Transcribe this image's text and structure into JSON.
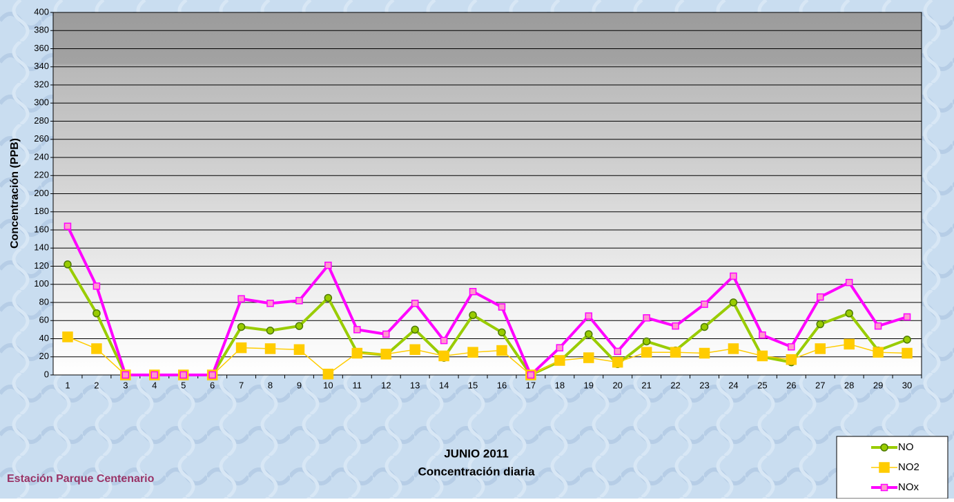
{
  "chart_data": {
    "type": "line",
    "title": "JUNIO 2011",
    "subtitle": "Concentración diaria",
    "y_label": "Concentración  (PPB)",
    "annotation": "Estación Parque Centenario",
    "categories": [
      1,
      2,
      3,
      4,
      5,
      6,
      7,
      8,
      9,
      10,
      11,
      12,
      13,
      14,
      15,
      16,
      17,
      18,
      19,
      20,
      21,
      22,
      23,
      24,
      25,
      26,
      27,
      28,
      29,
      30
    ],
    "series": [
      {
        "name": "NO",
        "color": "#99cc00",
        "values": [
          122,
          68,
          0,
          0,
          0,
          0,
          53,
          49,
          54,
          85,
          25,
          22,
          50,
          19,
          66,
          47,
          0,
          15,
          45,
          12,
          37,
          27,
          53,
          80,
          20,
          14,
          56,
          68,
          27,
          39
        ]
      },
      {
        "name": "NO2",
        "color": "#ffcc00",
        "values": [
          42,
          29,
          0,
          0,
          0,
          0,
          30,
          29,
          28,
          1,
          24,
          23,
          28,
          21,
          25,
          27,
          0,
          16,
          19,
          14,
          25,
          25,
          24,
          29,
          21,
          17,
          29,
          34,
          25,
          24
        ]
      },
      {
        "name": "NOx",
        "color": "#ff00ff",
        "values": [
          164,
          98,
          0,
          0,
          0,
          0,
          84,
          79,
          82,
          121,
          50,
          45,
          79,
          38,
          92,
          75,
          0,
          30,
          65,
          26,
          63,
          54,
          78,
          109,
          44,
          31,
          86,
          102,
          54,
          64
        ]
      }
    ],
    "ylim": [
      0,
      400
    ],
    "yticks": [
      0,
      20,
      40,
      60,
      80,
      100,
      120,
      140,
      160,
      180,
      200,
      220,
      240,
      260,
      280,
      300,
      320,
      340,
      360,
      380,
      400
    ],
    "grid": true,
    "legend": "bottom-right"
  }
}
